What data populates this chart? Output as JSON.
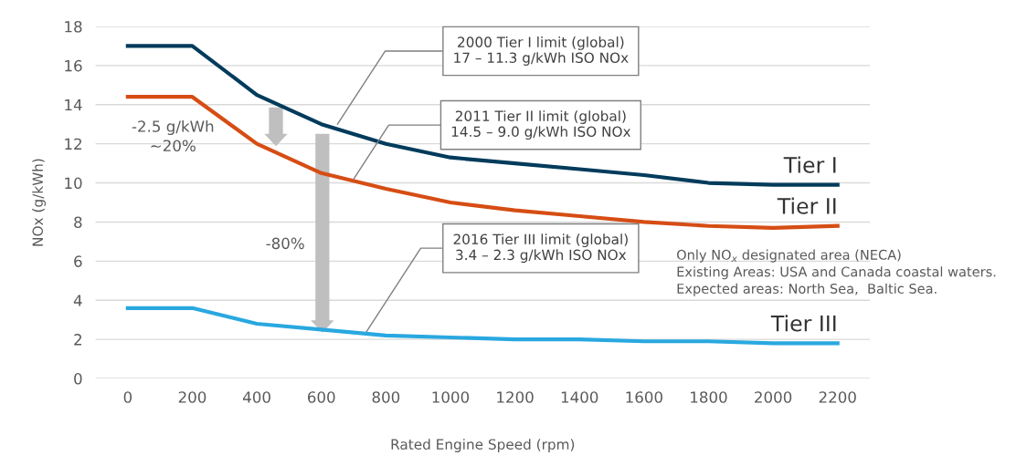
{
  "chart_data": {
    "type": "line",
    "xlabel": "Rated Engine Speed (rpm)",
    "ylabel": "NOx (g/kWh)",
    "x": [
      0,
      200,
      400,
      600,
      800,
      1000,
      1200,
      1400,
      1600,
      1800,
      2000,
      2200
    ],
    "series": [
      {
        "name": "Tier I",
        "color": "#003b5c",
        "values": [
          17,
          17,
          14.5,
          13,
          12,
          11.3,
          11,
          10.7,
          10.4,
          10,
          9.9,
          9.9
        ]
      },
      {
        "name": "Tier II",
        "color": "#d64d14",
        "values": [
          14.4,
          14.4,
          12,
          10.5,
          9.7,
          9.0,
          8.6,
          8.3,
          8.0,
          7.8,
          7.7,
          7.8
        ]
      },
      {
        "name": "Tier III",
        "color": "#29a8e0",
        "values": [
          3.6,
          3.6,
          2.8,
          2.5,
          2.2,
          2.1,
          2.0,
          2.0,
          1.9,
          1.9,
          1.8,
          1.8
        ]
      }
    ],
    "xlim": [
      -100,
      2300
    ],
    "ylim": [
      0,
      18
    ],
    "xticks": [
      0,
      200,
      400,
      600,
      800,
      1000,
      1200,
      1400,
      1600,
      1800,
      2000,
      2200
    ],
    "yticks": [
      0,
      2,
      4,
      6,
      8,
      10,
      12,
      14,
      16,
      18
    ],
    "grid": "y",
    "legend": false,
    "marker": "none",
    "line_style": "solid",
    "annotations": [
      {
        "text": "2000 Tier I limit (global)\n17 – 11.3 g/kWh ISO NOx",
        "x": 650,
        "y": 13
      },
      {
        "text": "2011 Tier II limit (global)\n14.5 – 9.0 g/kWh ISO NOx",
        "x": 700,
        "y": 10.2
      },
      {
        "text": "2016 Tier III limit (global)\n3.4 – 2.3 g/kWh ISO NOx",
        "x": 740,
        "y": 2.4
      },
      "-2.5 g/kWh\n~20%",
      "-80%",
      "Only NO$_{x}$ designated area (NECA)\nExisting Areas: USA and Canada coastal waters.\nExpected areas: North Sea,  Baltic Sea."
    ]
  }
}
